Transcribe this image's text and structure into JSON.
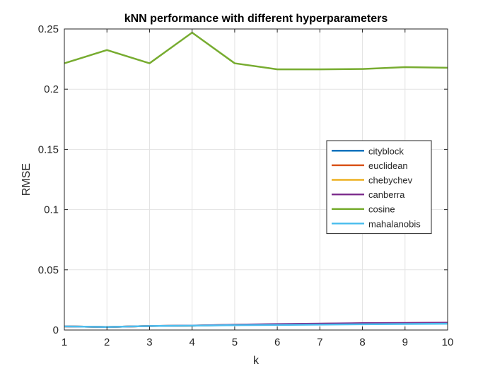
{
  "chart_data": {
    "type": "line",
    "title": "kNN performance with different hyperparameters",
    "xlabel": "k",
    "ylabel": "RMSE",
    "xlim": [
      1,
      10
    ],
    "ylim": [
      0,
      0.25
    ],
    "x": [
      1,
      2,
      3,
      4,
      5,
      6,
      7,
      8,
      9,
      10
    ],
    "xticks": [
      "1",
      "2",
      "3",
      "4",
      "5",
      "6",
      "7",
      "8",
      "9",
      "10"
    ],
    "yticks": [
      0,
      0.05,
      0.1,
      0.15,
      0.2,
      0.25
    ],
    "ytick_labels": [
      "0",
      "0.05",
      "0.1",
      "0.15",
      "0.2",
      "0.25"
    ],
    "grid": true,
    "legend_position": "right",
    "series": [
      {
        "name": "cityblock",
        "color": "#0072BD",
        "values": [
          0.003,
          0.0025,
          0.0033,
          0.0036,
          0.0042,
          0.0046,
          0.005,
          0.0054,
          0.0056,
          0.0058
        ]
      },
      {
        "name": "euclidean",
        "color": "#D95319",
        "values": [
          0.003,
          0.0025,
          0.0033,
          0.0036,
          0.0043,
          0.0047,
          0.0051,
          0.0055,
          0.0057,
          0.0059
        ]
      },
      {
        "name": "chebychev",
        "color": "#EDB120",
        "values": [
          0.003,
          0.0025,
          0.0033,
          0.0036,
          0.0043,
          0.0047,
          0.0051,
          0.0055,
          0.0057,
          0.0059
        ]
      },
      {
        "name": "canberra",
        "color": "#7E2F8E",
        "values": [
          0.003,
          0.0025,
          0.0033,
          0.0037,
          0.0044,
          0.0049,
          0.0053,
          0.0057,
          0.0059,
          0.0061
        ]
      },
      {
        "name": "cosine",
        "color": "#77AC30",
        "values": [
          0.2215,
          0.2325,
          0.2215,
          0.247,
          0.2215,
          0.2165,
          0.2165,
          0.2168,
          0.2183,
          0.2178
        ]
      },
      {
        "name": "mahalanobis",
        "color": "#4DBEEE",
        "values": [
          0.003,
          0.0025,
          0.0033,
          0.0036,
          0.004,
          0.0042,
          0.0045,
          0.0048,
          0.005,
          0.0052
        ]
      }
    ]
  }
}
